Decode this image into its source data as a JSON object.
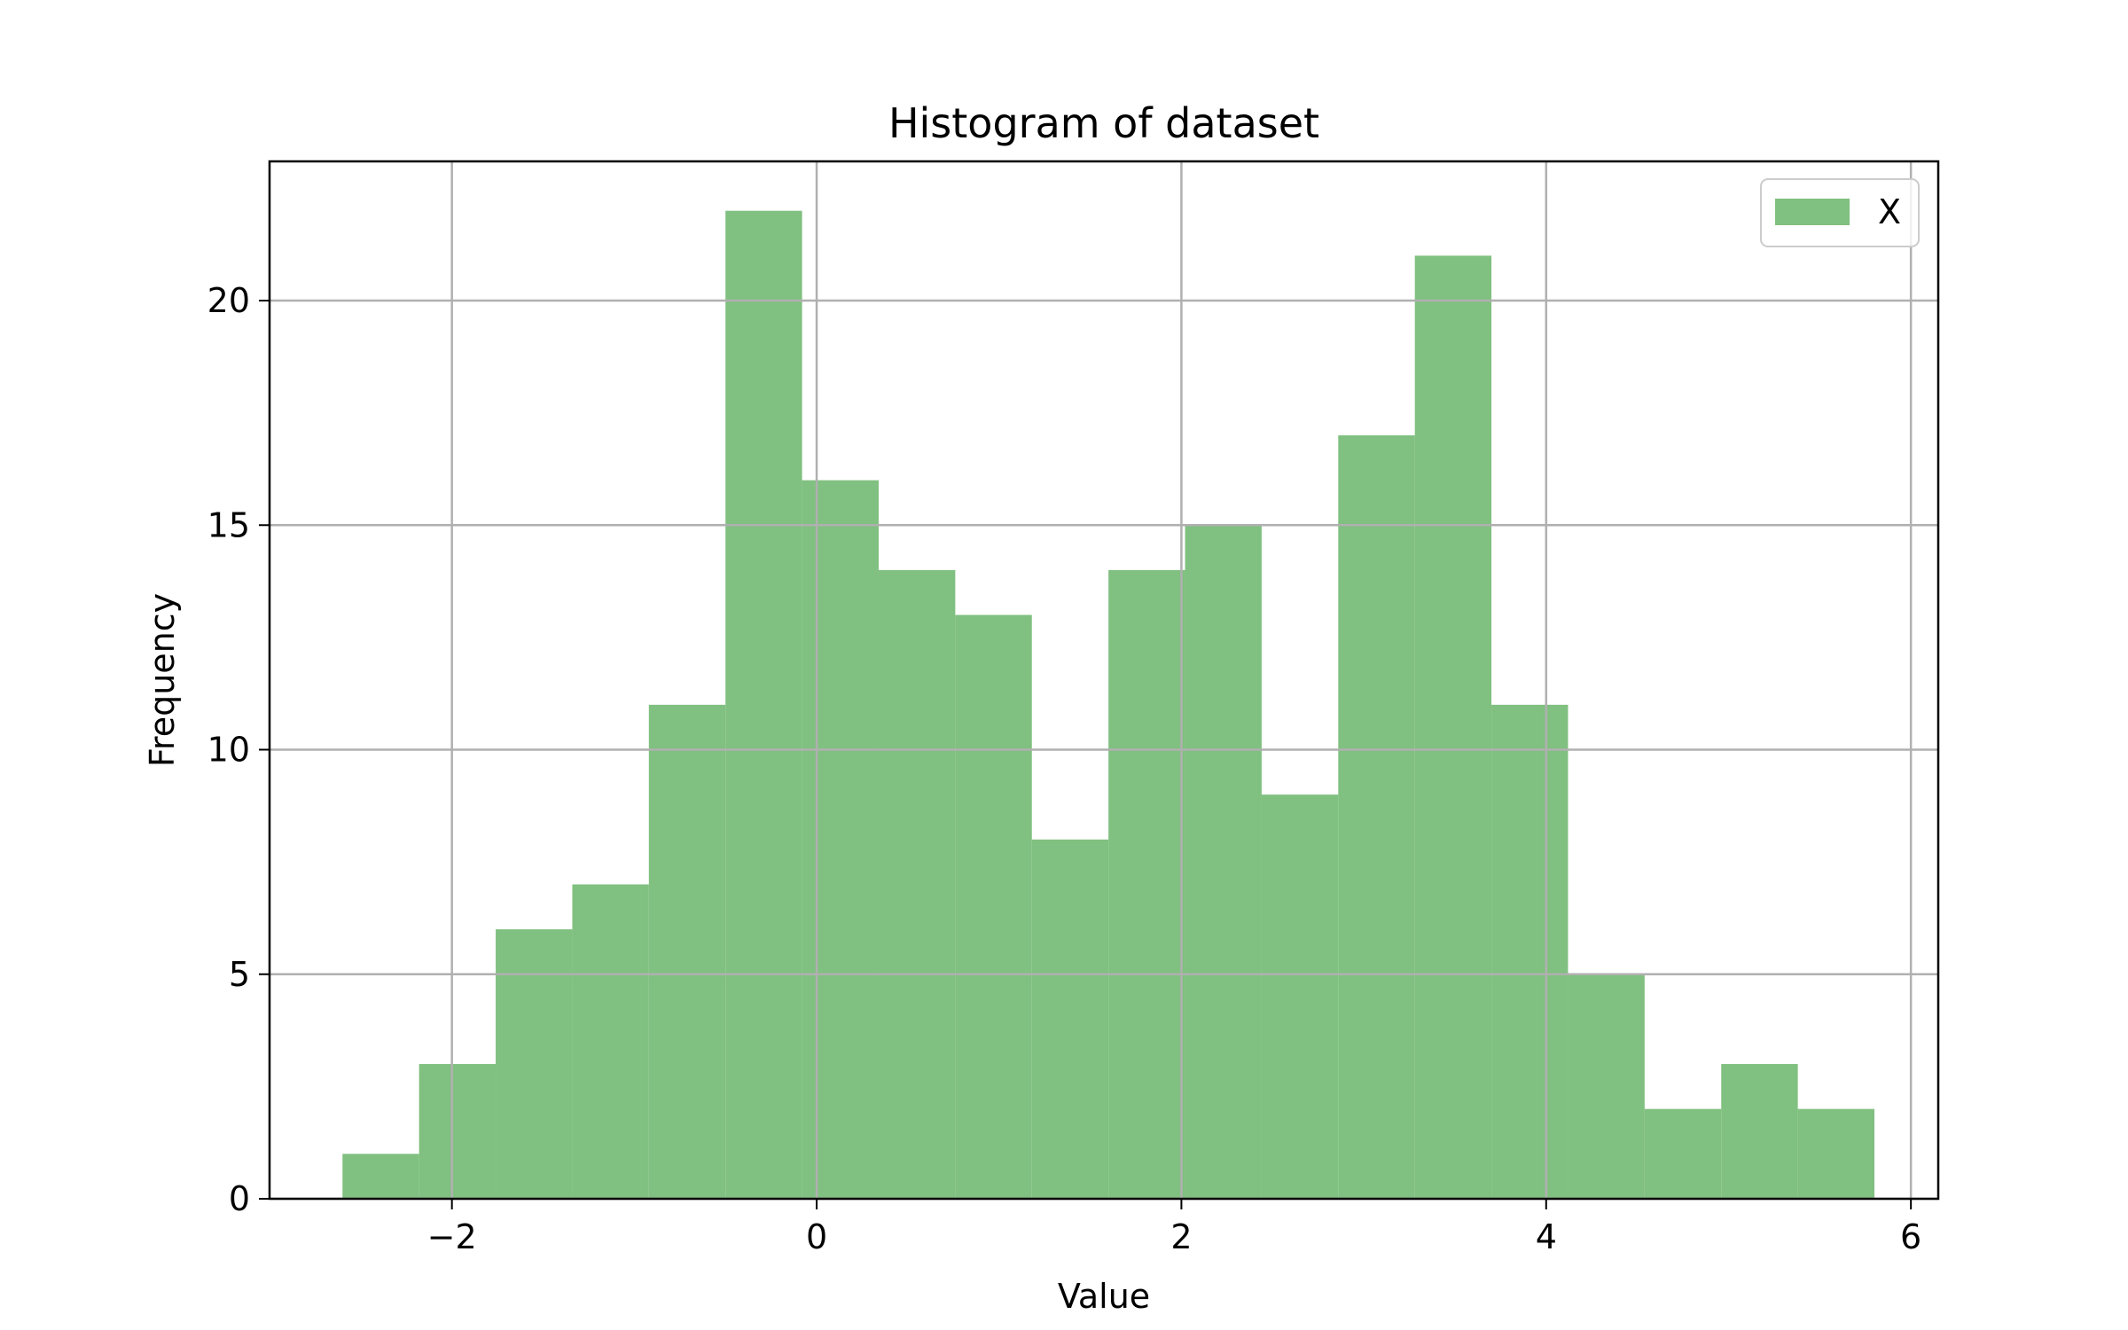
{
  "chart_data": {
    "type": "bar",
    "histogram": true,
    "title": "Histogram of dataset",
    "xlabel": "Value",
    "ylabel": "Frequency",
    "bin_edges": [
      -2.6,
      -2.18,
      -1.76,
      -1.34,
      -0.92,
      -0.5,
      -0.08,
      0.34,
      0.76,
      1.18,
      1.6,
      2.02,
      2.44,
      2.86,
      3.28,
      3.7,
      4.12,
      4.54,
      4.96,
      5.38,
      5.8
    ],
    "series": [
      {
        "name": "X",
        "values": [
          1,
          3,
          6,
          7,
          11,
          22,
          16,
          14,
          13,
          8,
          14,
          15,
          9,
          17,
          21,
          11,
          5,
          2,
          3,
          2
        ],
        "color": "#80c080"
      }
    ],
    "xlim": [
      -3.0,
      6.15
    ],
    "ylim": [
      0,
      23.1
    ],
    "xticks": [
      -2,
      0,
      2,
      4,
      6
    ],
    "xtick_labels": [
      "−2",
      "0",
      "2",
      "4",
      "6"
    ],
    "yticks": [
      0,
      5,
      10,
      15,
      20
    ],
    "ytick_labels": [
      "0",
      "5",
      "10",
      "15",
      "20"
    ],
    "grid": true,
    "legend_position": "top-right"
  }
}
